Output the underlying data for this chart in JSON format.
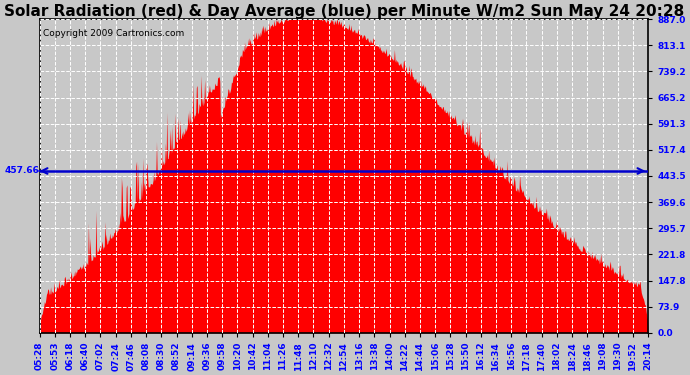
{
  "title": "Solar Radiation (red) & Day Average (blue) per Minute W/m2 Sun May 24 20:28",
  "copyright": "Copyright 2009 Cartronics.com",
  "y_max": 887.0,
  "y_min": 0.0,
  "day_average": 457.66,
  "y_ticks": [
    887.0,
    813.1,
    739.2,
    665.2,
    591.3,
    517.4,
    443.5,
    369.6,
    295.7,
    221.8,
    147.8,
    73.9,
    0.0
  ],
  "bg_color": "#c8c8c8",
  "plot_bg_color": "#c8c8c8",
  "fill_color": "#ff0000",
  "line_color": "#0000cc",
  "grid_color": "#ffffff",
  "title_fontsize": 11,
  "copyright_fontsize": 6.5,
  "tick_label_fontsize": 6.5,
  "time_labels": [
    "05:28",
    "05:53",
    "06:18",
    "06:40",
    "07:02",
    "07:24",
    "07:46",
    "08:08",
    "08:30",
    "08:52",
    "09:14",
    "09:36",
    "09:58",
    "10:20",
    "10:42",
    "11:04",
    "11:26",
    "11:48",
    "12:10",
    "12:32",
    "12:54",
    "13:16",
    "13:38",
    "14:00",
    "14:22",
    "14:44",
    "15:06",
    "15:28",
    "15:50",
    "16:12",
    "16:34",
    "16:56",
    "17:18",
    "17:40",
    "18:02",
    "18:24",
    "18:46",
    "19:08",
    "19:30",
    "19:52",
    "20:14"
  ]
}
